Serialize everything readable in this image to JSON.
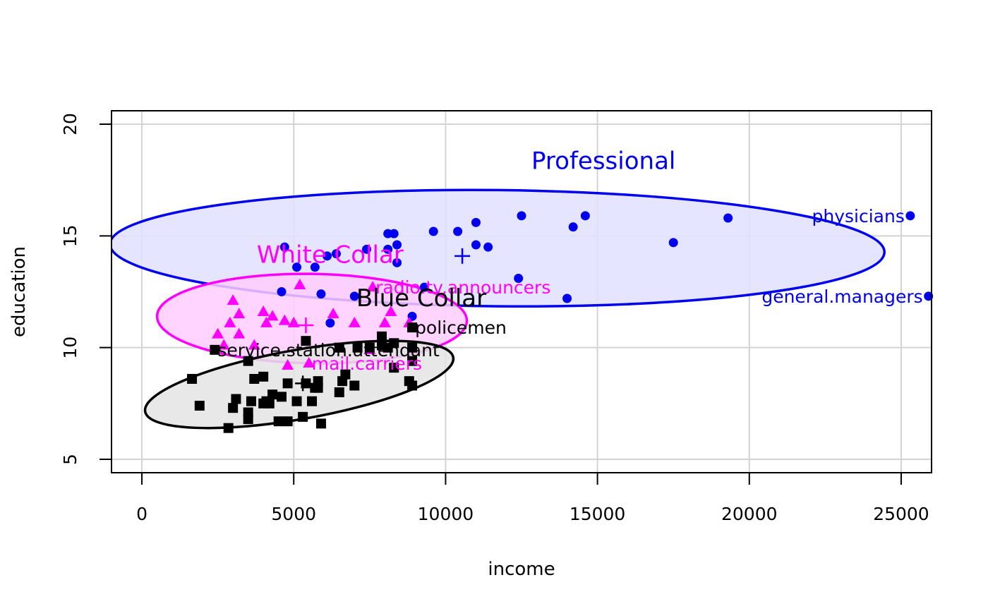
{
  "chart_data": {
    "type": "scatter",
    "xlabel": "income",
    "ylabel": "education",
    "xlim": [
      -1000,
      26000
    ],
    "ylim": [
      4.4,
      20.6
    ],
    "x_ticks": [
      0,
      5000,
      10000,
      15000,
      20000,
      25000
    ],
    "y_ticks": [
      5,
      10,
      15,
      20
    ],
    "x_tick_labels": [
      "0",
      "5000",
      "10000",
      "15000",
      "20000",
      "25000"
    ],
    "y_tick_labels": [
      "5",
      "10",
      "15",
      "20"
    ],
    "grid": true,
    "series": [
      {
        "name": "Professional",
        "color": "#0000ee",
        "fill": "#e0e0ff",
        "marker": "circle",
        "ellipse": {
          "cx": 11700,
          "cy": 14.45,
          "rx": 12750,
          "ry": 2.6,
          "angle_deg": 0.6
        },
        "centroid": [
          10550,
          14.1
        ],
        "label": {
          "text": "Professional",
          "x": 15200,
          "y": 18.0
        },
        "points": [
          [
            4700,
            14.5
          ],
          [
            4600,
            12.5
          ],
          [
            5100,
            13.6
          ],
          [
            5700,
            13.6
          ],
          [
            5900,
            12.4
          ],
          [
            6100,
            14.1
          ],
          [
            6400,
            14.2
          ],
          [
            6200,
            11.1
          ],
          [
            7000,
            12.3
          ],
          [
            7400,
            14.4
          ],
          [
            8100,
            15.1
          ],
          [
            8300,
            15.1
          ],
          [
            8100,
            14.4
          ],
          [
            8400,
            14.6
          ],
          [
            8400,
            13.8
          ],
          [
            8900,
            11.4
          ],
          [
            9300,
            12.7
          ],
          [
            9600,
            15.2
          ],
          [
            10400,
            15.2
          ],
          [
            11000,
            15.6
          ],
          [
            11000,
            14.6
          ],
          [
            11400,
            14.5
          ],
          [
            12400,
            13.1
          ],
          [
            12500,
            15.9
          ],
          [
            14000,
            12.2
          ],
          [
            14200,
            15.4
          ],
          [
            14600,
            15.9
          ],
          [
            17500,
            14.7
          ],
          [
            19300,
            15.8
          ],
          [
            25300,
            15.9
          ],
          [
            25900,
            12.3
          ]
        ],
        "annotations": [
          {
            "text": "physicians",
            "x": 25300,
            "y": 15.9
          },
          {
            "text": "general.managers",
            "x": 25900,
            "y": 12.3
          }
        ]
      },
      {
        "name": "White Collar",
        "color": "#ff00ff",
        "fill": "#ffccff",
        "marker": "triangle",
        "ellipse": {
          "cx": 5600,
          "cy": 11.3,
          "rx": 5100,
          "ry": 2.0,
          "angle_deg": 0.9
        },
        "centroid": [
          5400,
          11.0
        ],
        "label": {
          "text": "White Collar",
          "x": 6200,
          "y": 13.8
        },
        "points": [
          [
            2500,
            10.6
          ],
          [
            2700,
            10.1
          ],
          [
            2900,
            11.1
          ],
          [
            3000,
            12.1
          ],
          [
            3200,
            11.5
          ],
          [
            3200,
            10.6
          ],
          [
            3700,
            10.1
          ],
          [
            4000,
            11.6
          ],
          [
            4100,
            11.1
          ],
          [
            4300,
            11.4
          ],
          [
            4700,
            11.2
          ],
          [
            5000,
            11.1
          ],
          [
            4800,
            9.2
          ],
          [
            5200,
            12.8
          ],
          [
            5500,
            9.3
          ],
          [
            6300,
            11.5
          ],
          [
            7000,
            11.1
          ],
          [
            7600,
            12.7
          ],
          [
            7500,
            9.9
          ],
          [
            8000,
            11.1
          ],
          [
            8200,
            11.6
          ],
          [
            8800,
            11.1
          ]
        ],
        "annotations": [
          {
            "text": "radio.tv.announcers",
            "x": 7600,
            "y": 12.7
          },
          {
            "text": "mail.carriers",
            "x": 5500,
            "y": 9.3
          }
        ]
      },
      {
        "name": "Blue Collar",
        "color": "#000000",
        "fill": "#e4e4e4",
        "marker": "square",
        "ellipse": {
          "cx": 5180,
          "cy": 8.35,
          "rx": 5150,
          "ry": 1.55,
          "angle_deg": -10
        },
        "centroid": [
          5300,
          8.4
        ],
        "label": {
          "text": "Blue Collar",
          "x": 9200,
          "y": 11.85
        },
        "points": [
          [
            1650,
            8.6
          ],
          [
            1900,
            7.4
          ],
          [
            2400,
            9.9
          ],
          [
            2850,
            6.4
          ],
          [
            3000,
            7.3
          ],
          [
            3100,
            7.7
          ],
          [
            3500,
            7.1
          ],
          [
            3500,
            6.8
          ],
          [
            3500,
            9.4
          ],
          [
            3600,
            7.6
          ],
          [
            3700,
            8.6
          ],
          [
            4000,
            8.7
          ],
          [
            4000,
            7.5
          ],
          [
            4100,
            7.6
          ],
          [
            4200,
            7.5
          ],
          [
            4300,
            7.9
          ],
          [
            4500,
            6.7
          ],
          [
            4600,
            7.8
          ],
          [
            4800,
            8.4
          ],
          [
            4800,
            6.7
          ],
          [
            5100,
            7.6
          ],
          [
            5300,
            6.9
          ],
          [
            5400,
            8.4
          ],
          [
            5600,
            7.6
          ],
          [
            5800,
            8.2
          ],
          [
            5800,
            8.5
          ],
          [
            5900,
            6.6
          ],
          [
            6500,
            8.0
          ],
          [
            6600,
            8.5
          ],
          [
            6700,
            8.8
          ],
          [
            7000,
            8.3
          ],
          [
            7500,
            10.0
          ],
          [
            7900,
            10.5
          ],
          [
            7900,
            10.1
          ],
          [
            8300,
            9.1
          ],
          [
            8300,
            10.2
          ],
          [
            8900,
            10.0
          ],
          [
            8900,
            10.9
          ],
          [
            8800,
            8.5
          ],
          [
            8900,
            8.3
          ],
          [
            6500,
            10.0
          ],
          [
            5400,
            10.3
          ],
          [
            5700,
            8.2
          ],
          [
            7100,
            10.0
          ],
          [
            8100,
            10.0
          ],
          [
            8900,
            9.4
          ]
        ],
        "annotations": [
          {
            "text": "policemen",
            "x": 8900,
            "y": 10.9
          },
          {
            "text": "service.station.attendant",
            "x": 2400,
            "y": 9.9
          }
        ]
      }
    ]
  }
}
